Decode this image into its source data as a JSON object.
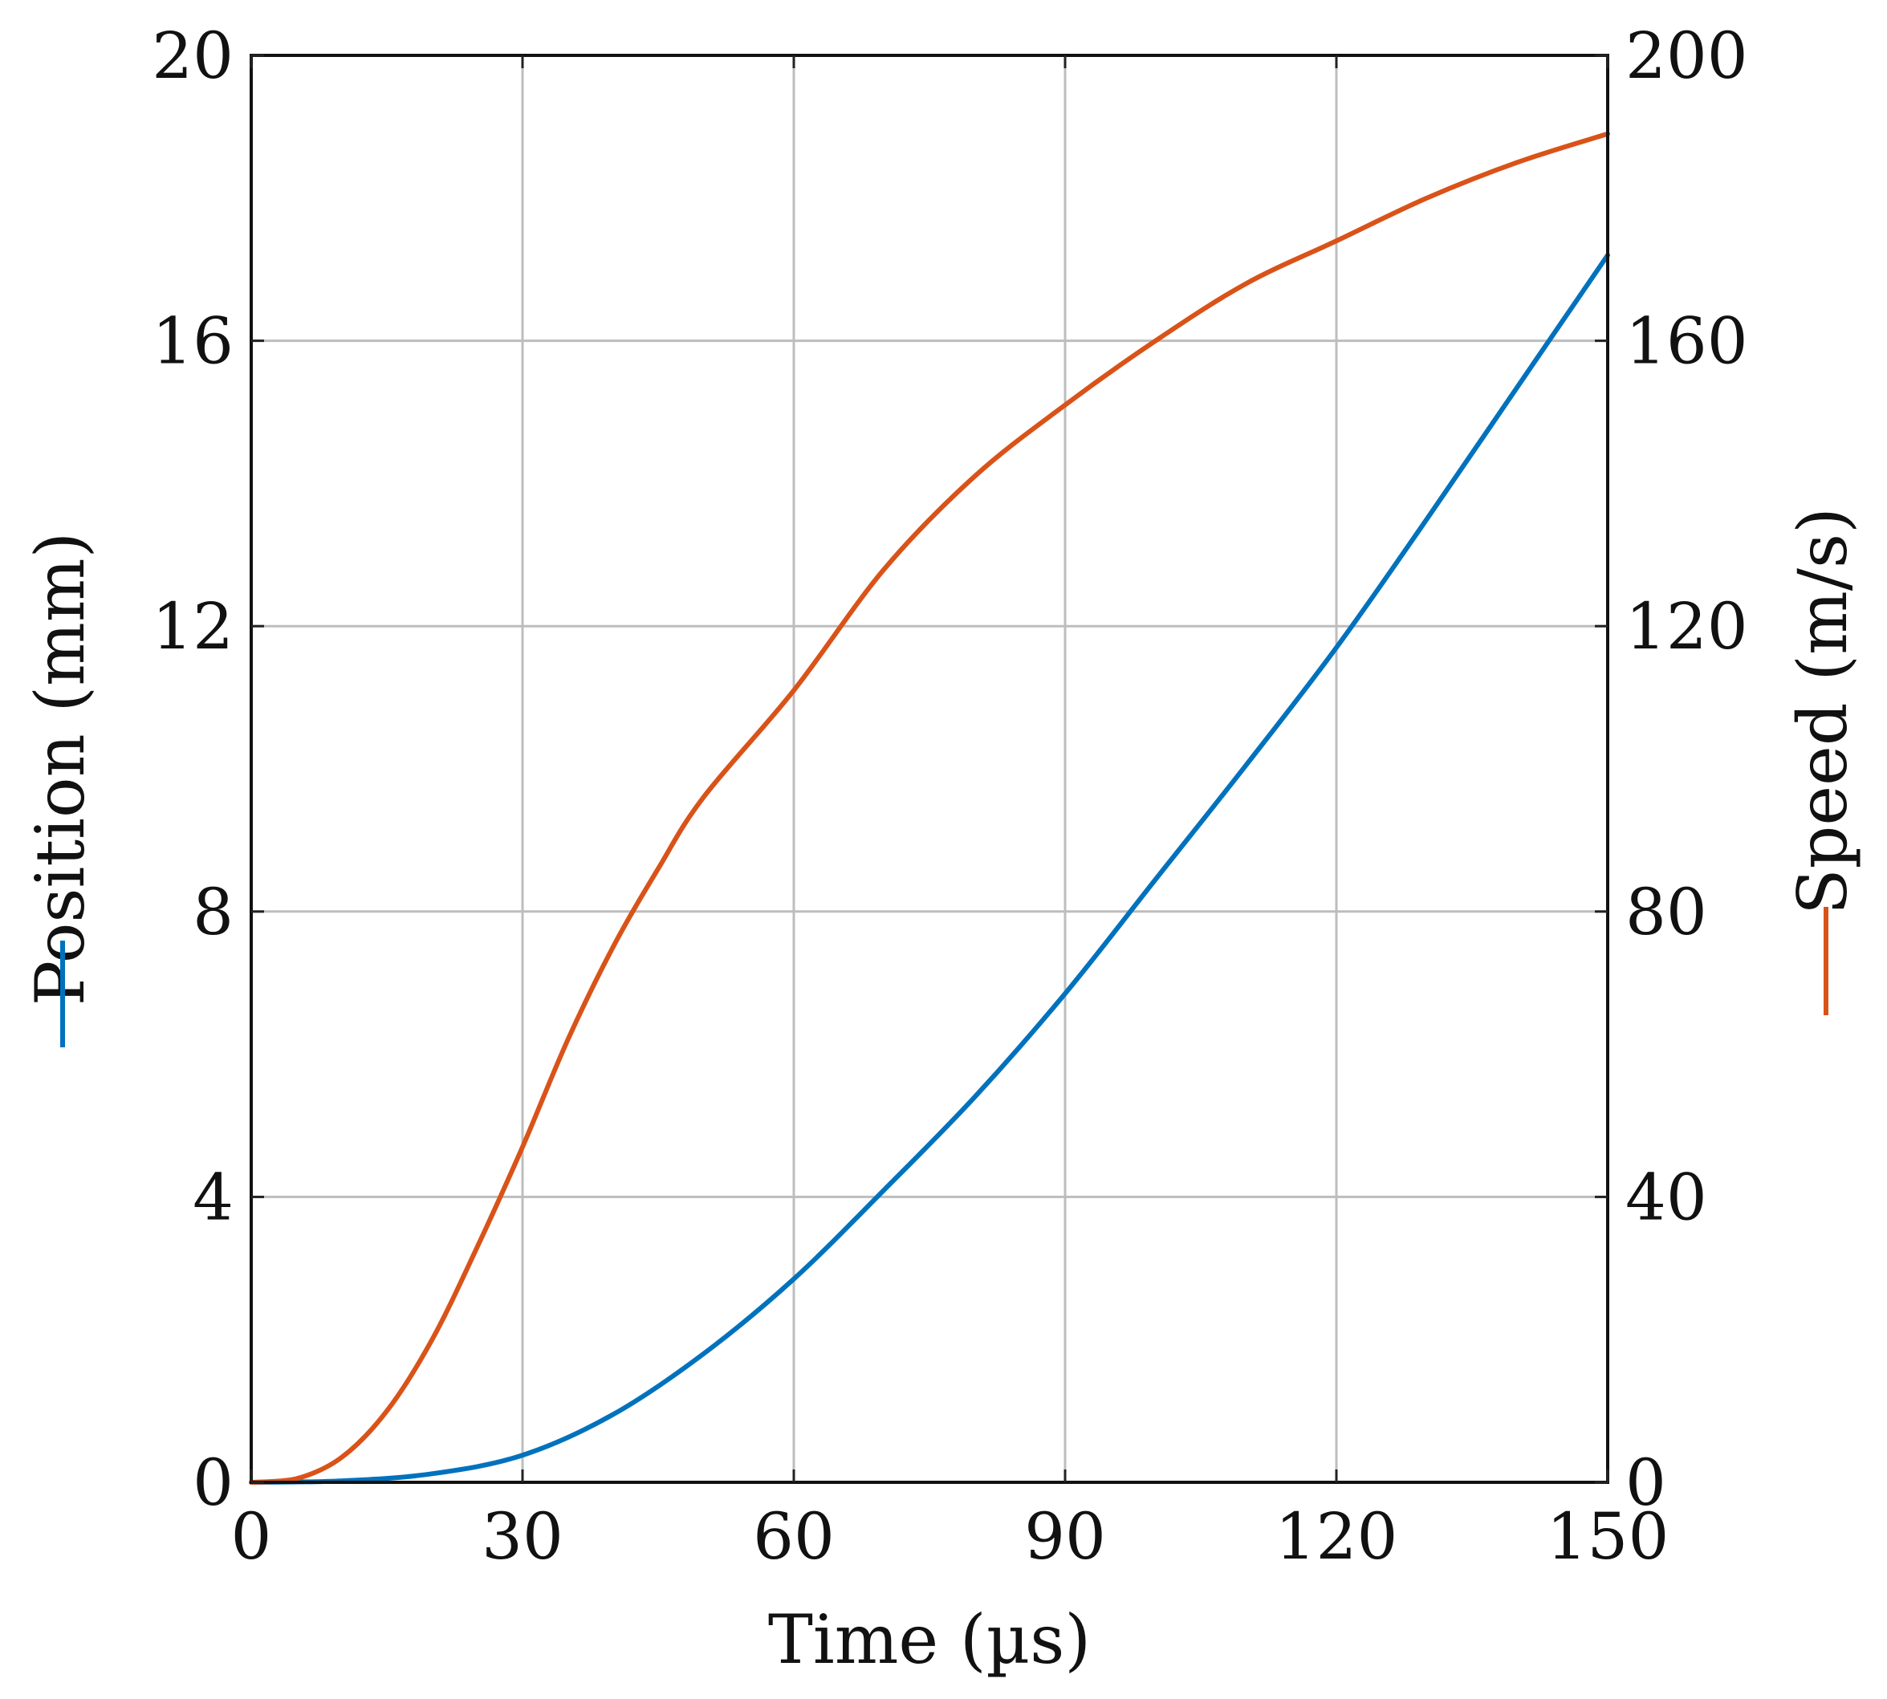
{
  "chart_data": {
    "type": "line",
    "xlabel": "Time (µs)",
    "ylabel_left": "Position (mm)",
    "ylabel_right": "Speed (m/s)",
    "xlim": [
      0,
      150
    ],
    "ylim_left": [
      0,
      20
    ],
    "ylim_right": [
      0,
      200
    ],
    "x_ticks": [
      "0",
      "30",
      "60",
      "90",
      "120",
      "150"
    ],
    "y_left_ticks": [
      "0",
      "4",
      "8",
      "12",
      "16",
      "20"
    ],
    "y_right_ticks": [
      "0",
      "40",
      "80",
      "120",
      "160",
      "200"
    ],
    "grid": true,
    "series": [
      {
        "axis": "left",
        "color": "#0072BD",
        "x": [
          0,
          10,
          20,
          30,
          40,
          50,
          60,
          70,
          80,
          90,
          100,
          110,
          120,
          130,
          140,
          150
        ],
        "y": [
          0,
          0.02,
          0.12,
          0.38,
          0.95,
          1.8,
          2.85,
          4.1,
          5.4,
          6.85,
          8.45,
          10.05,
          11.7,
          13.5,
          15.35,
          17.2
        ]
      },
      {
        "axis": "right",
        "color": "#D95319",
        "x": [
          0,
          5,
          10,
          15,
          20,
          25,
          30,
          35,
          40,
          45,
          50,
          60,
          70,
          80,
          90,
          100,
          110,
          120,
          130,
          140,
          150
        ],
        "y": [
          0,
          0.5,
          3.5,
          10,
          20,
          33,
          47,
          62,
          75,
          86,
          96,
          111,
          128,
          141,
          151,
          160,
          168,
          174,
          180,
          185,
          189
        ]
      }
    ]
  }
}
